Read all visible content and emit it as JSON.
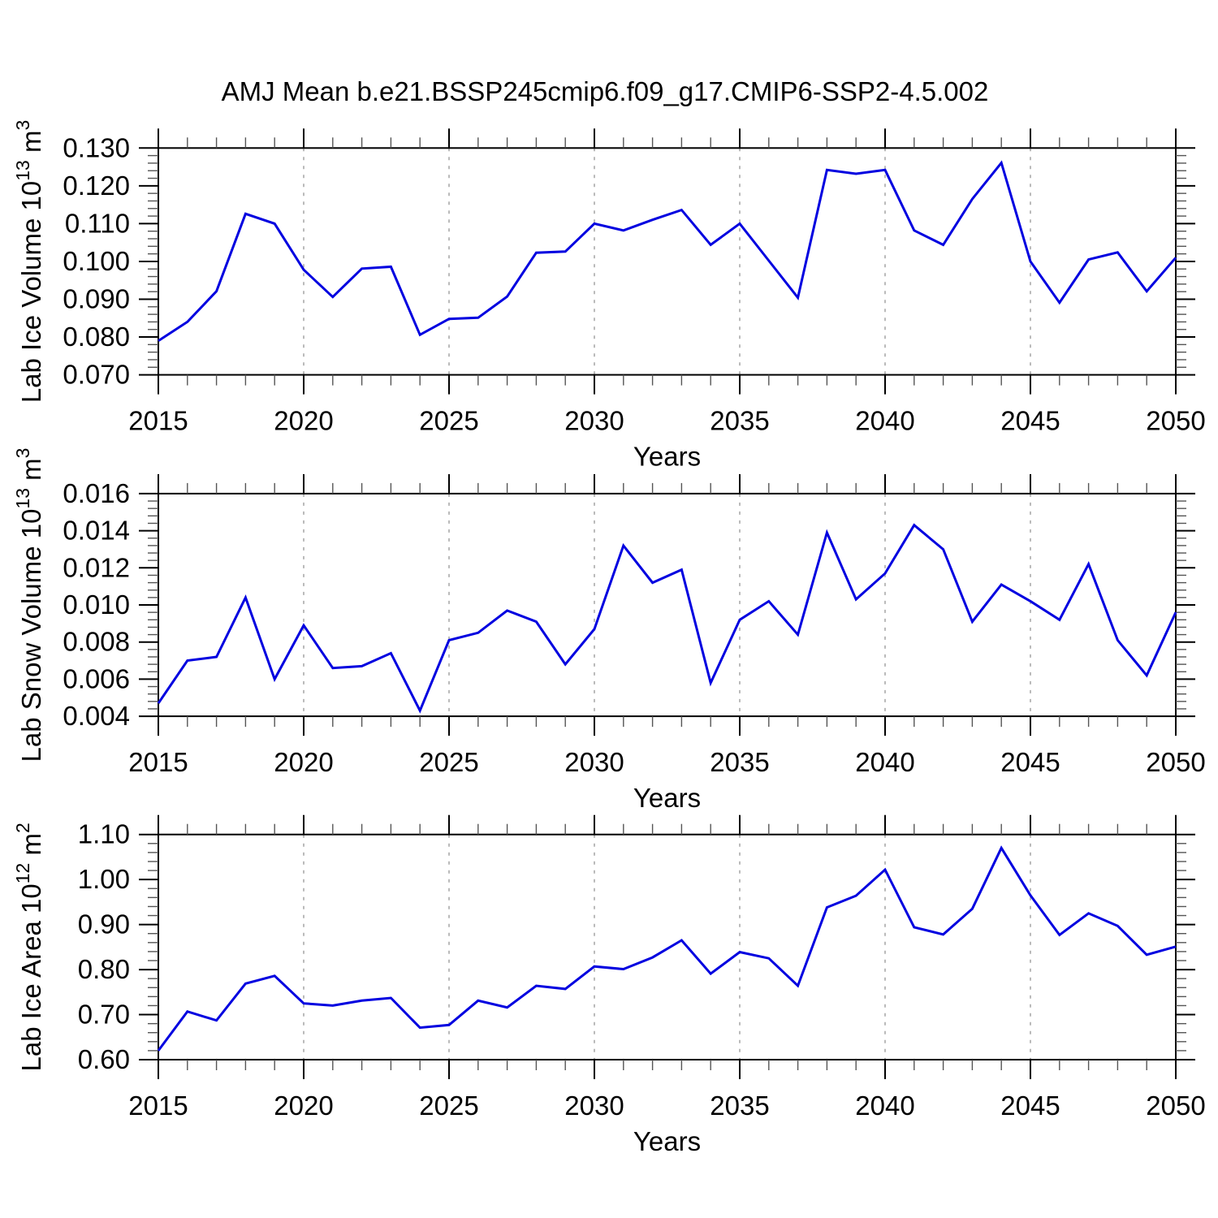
{
  "title": "AMJ Mean b.e21.BSSP245cmip6.f09_g17.CMIP6-SSP2-4.5.002",
  "style": {
    "line_color": "#0000e0",
    "axis_color": "#000000",
    "minor_tick_color": "#555555",
    "grid_color": "#aaaaaa",
    "background": "#ffffff"
  },
  "chart_data": [
    {
      "type": "line",
      "name": "lab-ice-volume",
      "ylabel": "Lab Ice Volume 10^13 m^3",
      "ylabel_parts": [
        {
          "t": "Lab Ice Volume 10"
        },
        {
          "t": "13",
          "sup": true
        },
        {
          "t": " m"
        },
        {
          "t": "3",
          "sup": true
        }
      ],
      "xlabel": "Years",
      "ylim": [
        0.07,
        0.13
      ],
      "yticks": [
        0.07,
        0.08,
        0.09,
        0.1,
        0.11,
        0.12,
        0.13
      ],
      "ytick_labels": [
        "0.070",
        "0.080",
        "0.090",
        "0.100",
        "0.110",
        "0.120",
        "0.130"
      ],
      "minor_y_step": 0.002,
      "xticks": [
        2015,
        2020,
        2025,
        2030,
        2035,
        2040,
        2045,
        2050
      ],
      "xtick_labels": [
        "2015",
        "2020",
        "2025",
        "2030",
        "2035",
        "2040",
        "2045",
        "2050"
      ],
      "grid_x": [
        2020,
        2025,
        2030,
        2035,
        2040,
        2045
      ],
      "x": [
        2015,
        2016,
        2017,
        2018,
        2019,
        2020,
        2021,
        2022,
        2023,
        2024,
        2025,
        2026,
        2027,
        2028,
        2029,
        2030,
        2031,
        2032,
        2033,
        2034,
        2035,
        2036,
        2037,
        2038,
        2039,
        2040,
        2041,
        2042,
        2043,
        2044,
        2045,
        2046,
        2047,
        2048,
        2049,
        2050
      ],
      "values": [
        0.079,
        0.084,
        0.0921,
        0.1126,
        0.11,
        0.0978,
        0.0906,
        0.0981,
        0.0986,
        0.0806,
        0.0848,
        0.0851,
        0.0907,
        0.1023,
        0.1026,
        0.11,
        0.1082,
        0.111,
        0.1136,
        0.1044,
        0.11,
        0.1002,
        0.0904,
        0.1242,
        0.1232,
        0.1242,
        0.1082,
        0.1044,
        0.1165,
        0.1261,
        0.1,
        0.0891,
        0.1005,
        0.1024,
        0.0921,
        0.101
      ]
    },
    {
      "type": "line",
      "name": "lab-snow-volume",
      "ylabel": "Lab Snow Volume 10^13 m^3",
      "ylabel_parts": [
        {
          "t": "Lab Snow Volume 10"
        },
        {
          "t": "13",
          "sup": true
        },
        {
          "t": " m"
        },
        {
          "t": "3",
          "sup": true
        }
      ],
      "xlabel": "Years",
      "ylim": [
        0.004,
        0.016
      ],
      "yticks": [
        0.004,
        0.006,
        0.008,
        0.01,
        0.012,
        0.014,
        0.016
      ],
      "ytick_labels": [
        "0.004",
        "0.006",
        "0.008",
        "0.010",
        "0.012",
        "0.014",
        "0.016"
      ],
      "minor_y_step": 0.0004,
      "xticks": [
        2015,
        2020,
        2025,
        2030,
        2035,
        2040,
        2045,
        2050
      ],
      "xtick_labels": [
        "2015",
        "2020",
        "2025",
        "2030",
        "2035",
        "2040",
        "2045",
        "2050"
      ],
      "grid_x": [
        2020,
        2025,
        2030,
        2035,
        2040,
        2045
      ],
      "x": [
        2015,
        2016,
        2017,
        2018,
        2019,
        2020,
        2021,
        2022,
        2023,
        2024,
        2025,
        2026,
        2027,
        2028,
        2029,
        2030,
        2031,
        2032,
        2033,
        2034,
        2035,
        2036,
        2037,
        2038,
        2039,
        2040,
        2041,
        2042,
        2043,
        2044,
        2045,
        2046,
        2047,
        2048,
        2049,
        2050
      ],
      "values": [
        0.0047,
        0.007,
        0.0072,
        0.0104,
        0.006,
        0.0089,
        0.0066,
        0.0067,
        0.0074,
        0.0043,
        0.0081,
        0.0085,
        0.0097,
        0.0091,
        0.0068,
        0.0087,
        0.0132,
        0.0112,
        0.0119,
        0.0058,
        0.0092,
        0.0102,
        0.0084,
        0.0139,
        0.0103,
        0.0117,
        0.0143,
        0.013,
        0.0091,
        0.0111,
        0.0102,
        0.0092,
        0.0122,
        0.0081,
        0.0062,
        0.0096
      ]
    },
    {
      "type": "line",
      "name": "lab-ice-area",
      "ylabel": "Lab Ice Area 10^12 m^2",
      "ylabel_parts": [
        {
          "t": "Lab Ice Area 10"
        },
        {
          "t": "12",
          "sup": true
        },
        {
          "t": " m"
        },
        {
          "t": "2",
          "sup": true
        }
      ],
      "xlabel": "Years",
      "ylim": [
        0.6,
        1.1
      ],
      "yticks": [
        0.6,
        0.7,
        0.8,
        0.9,
        1.0,
        1.1
      ],
      "ytick_labels": [
        "0.60",
        "0.70",
        "0.80",
        "0.90",
        "1.00",
        "1.10"
      ],
      "minor_y_step": 0.02,
      "xticks": [
        2015,
        2020,
        2025,
        2030,
        2035,
        2040,
        2045,
        2050
      ],
      "xtick_labels": [
        "2015",
        "2020",
        "2025",
        "2030",
        "2035",
        "2040",
        "2045",
        "2050"
      ],
      "grid_x": [
        2020,
        2025,
        2030,
        2035,
        2040,
        2045
      ],
      "x": [
        2015,
        2016,
        2017,
        2018,
        2019,
        2020,
        2021,
        2022,
        2023,
        2024,
        2025,
        2026,
        2027,
        2028,
        2029,
        2030,
        2031,
        2032,
        2033,
        2034,
        2035,
        2036,
        2037,
        2038,
        2039,
        2040,
        2041,
        2042,
        2043,
        2044,
        2045,
        2046,
        2047,
        2048,
        2049,
        2050
      ],
      "values": [
        0.62,
        0.707,
        0.687,
        0.769,
        0.786,
        0.725,
        0.72,
        0.731,
        0.737,
        0.671,
        0.677,
        0.731,
        0.716,
        0.764,
        0.757,
        0.807,
        0.801,
        0.827,
        0.865,
        0.791,
        0.839,
        0.825,
        0.764,
        0.938,
        0.964,
        1.022,
        0.894,
        0.878,
        0.935,
        1.07,
        0.965,
        0.877,
        0.925,
        0.897,
        0.833,
        0.851
      ]
    }
  ]
}
